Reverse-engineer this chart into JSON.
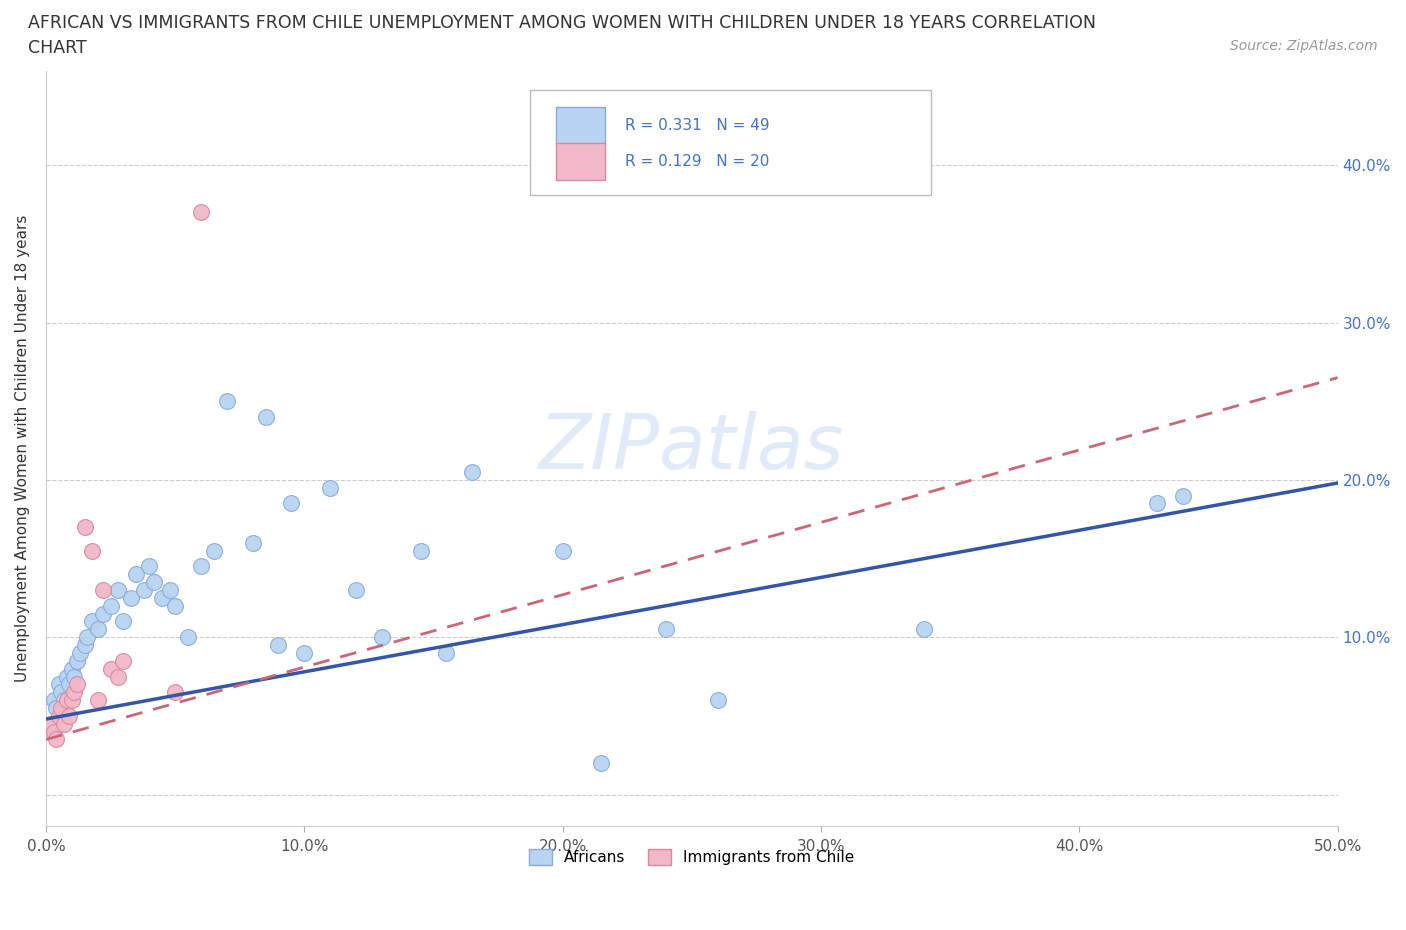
{
  "title_line1": "AFRICAN VS IMMIGRANTS FROM CHILE UNEMPLOYMENT AMONG WOMEN WITH CHILDREN UNDER 18 YEARS CORRELATION",
  "title_line2": "CHART",
  "source": "Source: ZipAtlas.com",
  "ylabel": "Unemployment Among Women with Children Under 18 years",
  "xlim": [
    0.0,
    0.5
  ],
  "ylim": [
    -0.02,
    0.46
  ],
  "xticks": [
    0.0,
    0.1,
    0.2,
    0.3,
    0.4,
    0.5
  ],
  "yticks": [
    0.0,
    0.1,
    0.2,
    0.3,
    0.4
  ],
  "right_ytick_labels": [
    "",
    "10.0%",
    "20.0%",
    "30.0%",
    "40.0%"
  ],
  "xtick_labels": [
    "0.0%",
    "10.0%",
    "20.0%",
    "30.0%",
    "40.0%",
    "50.0%"
  ],
  "grid_color": "#cccccc",
  "background_color": "#ffffff",
  "africans_color": "#b8d4f0",
  "africans_edge_color": "#88aadd",
  "chile_color": "#f0b8c8",
  "chile_edge_color": "#dd8899",
  "africans_line_color": "#3355aa",
  "chile_line_color": "#cc6677",
  "text_color_blue": "#4472c4",
  "watermark_color": "#dde8f8",
  "africans_x": [
    0.003,
    0.004,
    0.005,
    0.006,
    0.007,
    0.008,
    0.009,
    0.01,
    0.011,
    0.012,
    0.013,
    0.015,
    0.016,
    0.018,
    0.02,
    0.022,
    0.025,
    0.028,
    0.03,
    0.033,
    0.035,
    0.038,
    0.04,
    0.042,
    0.045,
    0.048,
    0.05,
    0.055,
    0.06,
    0.065,
    0.07,
    0.08,
    0.085,
    0.09,
    0.095,
    0.1,
    0.11,
    0.12,
    0.13,
    0.145,
    0.155,
    0.165,
    0.2,
    0.215,
    0.24,
    0.26,
    0.34,
    0.43,
    0.44
  ],
  "africans_y": [
    0.06,
    0.055,
    0.07,
    0.065,
    0.06,
    0.075,
    0.07,
    0.08,
    0.075,
    0.085,
    0.09,
    0.095,
    0.1,
    0.11,
    0.105,
    0.115,
    0.12,
    0.13,
    0.11,
    0.125,
    0.14,
    0.13,
    0.145,
    0.135,
    0.125,
    0.13,
    0.12,
    0.1,
    0.145,
    0.155,
    0.25,
    0.16,
    0.24,
    0.095,
    0.185,
    0.09,
    0.195,
    0.13,
    0.1,
    0.155,
    0.09,
    0.205,
    0.155,
    0.02,
    0.105,
    0.06,
    0.105,
    0.185,
    0.19
  ],
  "chile_x": [
    0.002,
    0.003,
    0.004,
    0.005,
    0.006,
    0.007,
    0.008,
    0.009,
    0.01,
    0.011,
    0.012,
    0.015,
    0.018,
    0.02,
    0.022,
    0.025,
    0.028,
    0.03,
    0.05,
    0.06
  ],
  "chile_y": [
    0.045,
    0.04,
    0.035,
    0.05,
    0.055,
    0.045,
    0.06,
    0.05,
    0.06,
    0.065,
    0.07,
    0.17,
    0.155,
    0.06,
    0.13,
    0.08,
    0.075,
    0.085,
    0.065,
    0.37
  ]
}
